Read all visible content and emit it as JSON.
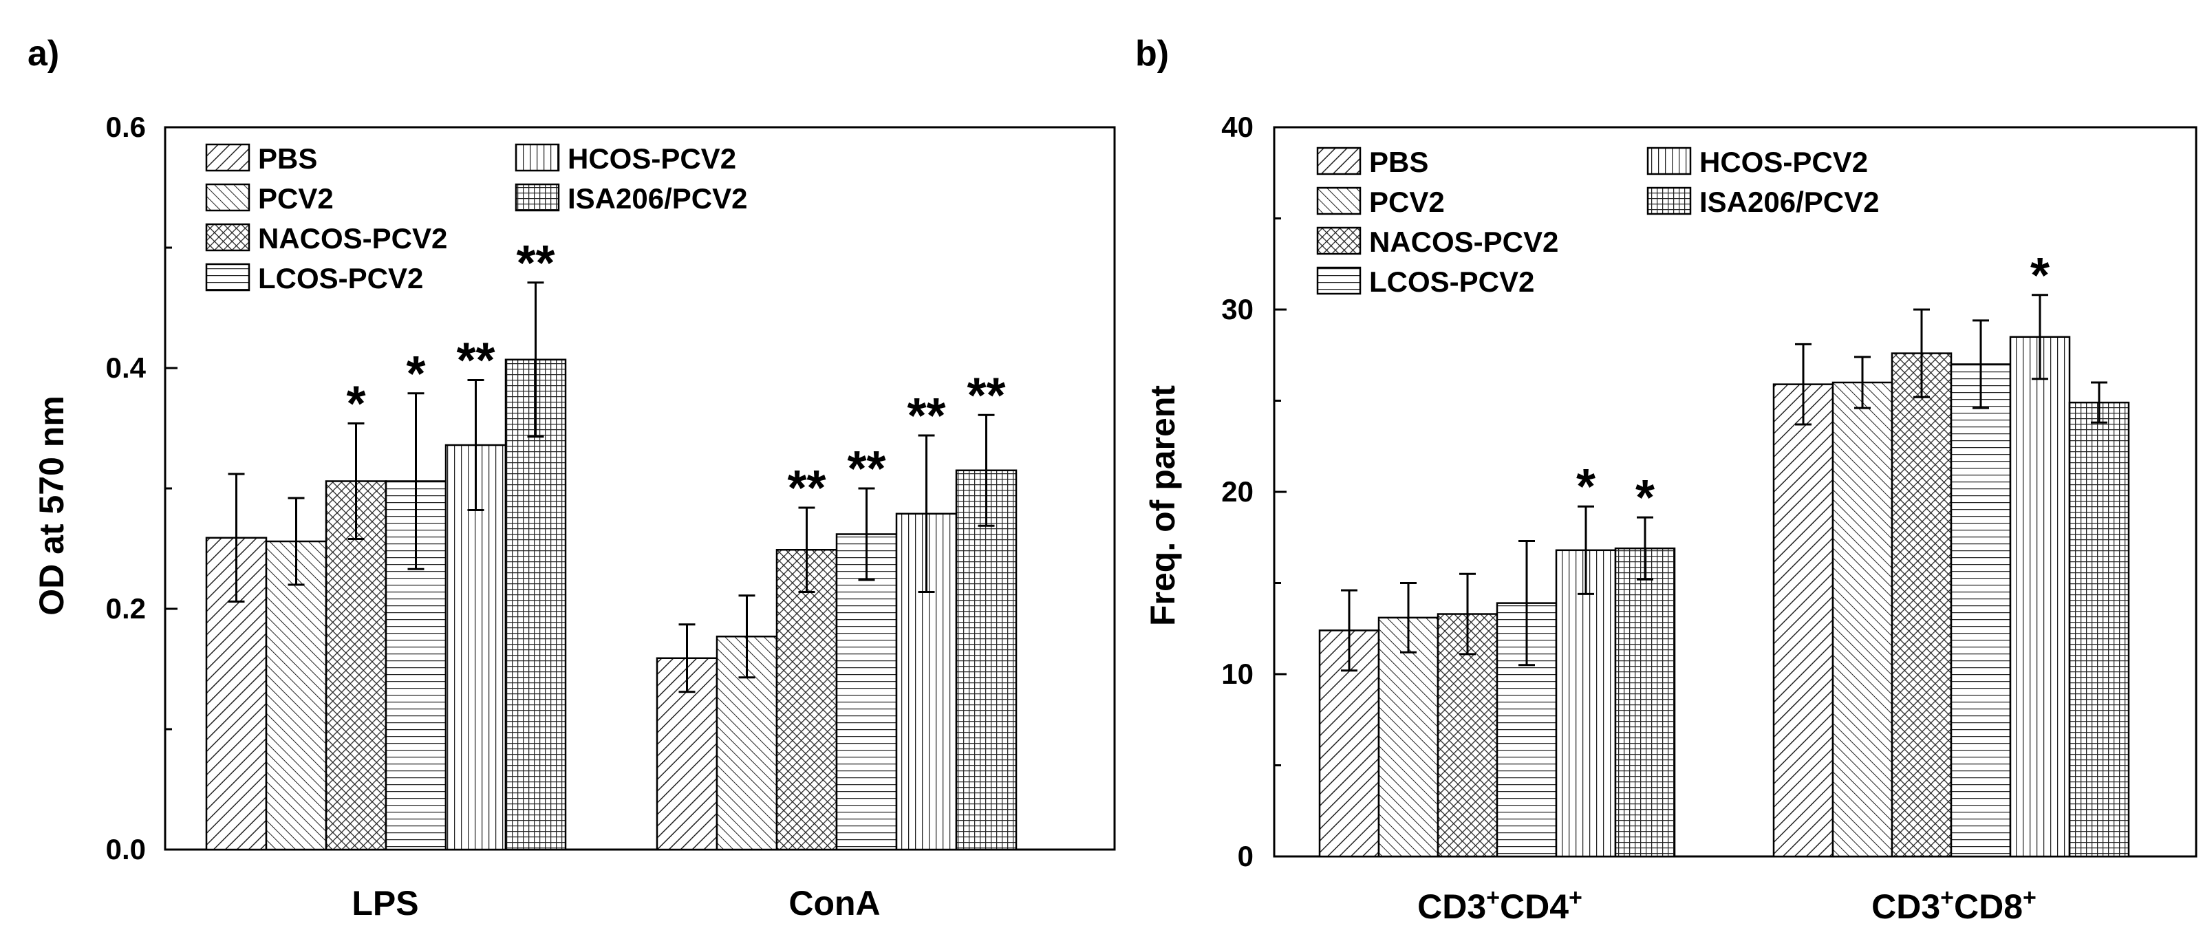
{
  "legend_entries": [
    "PBS",
    "HCOS-PCV2",
    "PCV2",
    "ISA206/PCV2",
    "NACOS-PCV2",
    "LCOS-PCV2"
  ],
  "colors": {
    "stroke": "#000000",
    "fill": "#ffffff",
    "hatch": "#222222"
  },
  "chart_data": [
    {
      "type": "bar",
      "panel_label": "a)",
      "ylabel": "OD at 570 nm",
      "xlabel": "",
      "ylim": [
        0.0,
        0.6
      ],
      "yticks": [
        0.0,
        0.2,
        0.4,
        0.6
      ],
      "ytick_labels": [
        "0.0",
        "0.2",
        "0.4",
        "0.6"
      ],
      "categories": [
        "LPS",
        "ConA"
      ],
      "series": [
        {
          "name": "PBS",
          "values": [
            0.259,
            0.159
          ],
          "errors": [
            0.053,
            0.028
          ],
          "sig": [
            "",
            ""
          ]
        },
        {
          "name": "PCV2",
          "values": [
            0.256,
            0.177
          ],
          "errors": [
            0.036,
            0.034
          ],
          "sig": [
            "",
            ""
          ]
        },
        {
          "name": "NACOS-PCV2",
          "values": [
            0.306,
            0.249
          ],
          "errors": [
            0.048,
            0.035
          ],
          "sig": [
            "*",
            "**"
          ]
        },
        {
          "name": "LCOS-PCV2",
          "values": [
            0.306,
            0.262
          ],
          "errors": [
            0.073,
            0.038
          ],
          "sig": [
            "*",
            "**"
          ]
        },
        {
          "name": "HCOS-PCV2",
          "values": [
            0.336,
            0.279
          ],
          "errors": [
            0.054,
            0.065
          ],
          "sig": [
            "**",
            "**"
          ]
        },
        {
          "name": "ISA206/PCV2",
          "values": [
            0.407,
            0.315
          ],
          "errors": [
            0.064,
            0.046
          ],
          "sig": [
            "**",
            "**"
          ]
        }
      ]
    },
    {
      "type": "bar",
      "panel_label": "b)",
      "ylabel": "Freq. of parent",
      "xlabel": "",
      "ylim": [
        0,
        40
      ],
      "yticks": [
        0,
        10,
        20,
        30,
        40
      ],
      "ytick_labels": [
        "0",
        "10",
        "20",
        "30",
        "40"
      ],
      "categories": [
        "CD3+CD4+",
        "CD3+CD8+"
      ],
      "series": [
        {
          "name": "PBS",
          "values": [
            12.4,
            25.9
          ],
          "errors": [
            2.2,
            2.2
          ],
          "sig": [
            "",
            ""
          ]
        },
        {
          "name": "PCV2",
          "values": [
            13.1,
            26.0
          ],
          "errors": [
            1.9,
            1.4
          ],
          "sig": [
            "",
            ""
          ]
        },
        {
          "name": "NACOS-PCV2",
          "values": [
            13.3,
            27.6
          ],
          "errors": [
            2.2,
            2.4
          ],
          "sig": [
            "",
            ""
          ]
        },
        {
          "name": "LCOS-PCV2",
          "values": [
            13.9,
            27.0
          ],
          "errors": [
            3.4,
            2.4
          ],
          "sig": [
            "",
            ""
          ]
        },
        {
          "name": "HCOS-PCV2",
          "values": [
            16.8,
            28.5
          ],
          "errors": [
            2.4,
            2.3
          ],
          "sig": [
            "*",
            "*"
          ]
        },
        {
          "name": "ISA206/PCV2",
          "values": [
            16.9,
            24.9
          ],
          "errors": [
            1.7,
            1.1
          ],
          "sig": [
            "*",
            ""
          ]
        }
      ]
    }
  ]
}
